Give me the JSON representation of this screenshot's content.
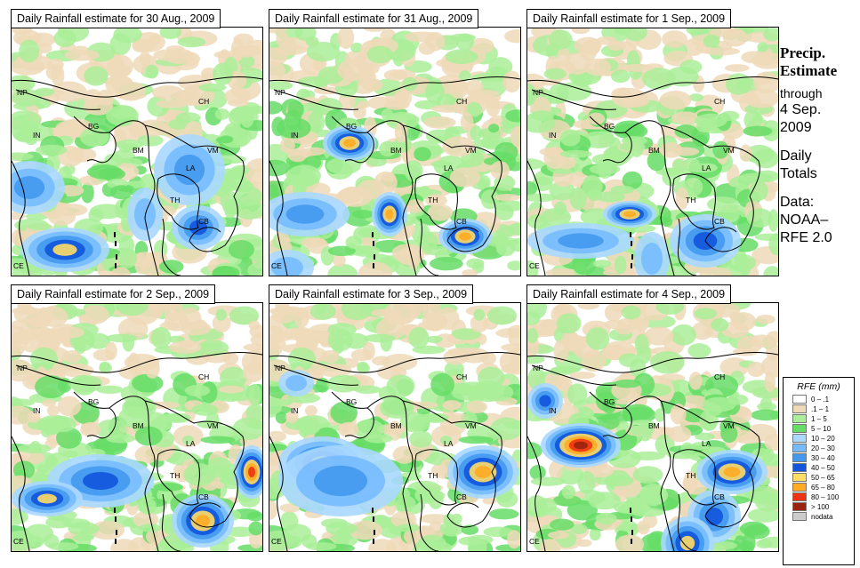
{
  "panels": [
    {
      "title": "Daily Rainfall estimate for  30 Aug., 2009"
    },
    {
      "title": "Daily Rainfall estimate for  31 Aug., 2009"
    },
    {
      "title": "Daily Rainfall estimate for  1 Sep., 2009"
    },
    {
      "title": "Daily Rainfall estimate for  2 Sep., 2009"
    },
    {
      "title": "Daily Rainfall estimate for  3 Sep., 2009"
    },
    {
      "title": "Daily Rainfall estimate for  4 Sep., 2009"
    }
  ],
  "country_labels": [
    "NP",
    "CH",
    "IN",
    "BG",
    "BM",
    "VM",
    "LA",
    "TH",
    "CB",
    "CE"
  ],
  "sidebar": {
    "title_line1": "Precip.",
    "title_line2": "Estimate",
    "through": "through",
    "date_line1": "4 Sep.",
    "date_line2": "2009",
    "daily_line1": "Daily",
    "daily_line2": "Totals",
    "data_line1": "Data:",
    "data_line2": "NOAA–",
    "data_line3": "RFE 2.0"
  },
  "legend": {
    "title": "RFE (mm)",
    "items": [
      {
        "label": "0 – .1",
        "color": "#ffffff"
      },
      {
        "label": ".1 – 1",
        "color": "#eed9b9"
      },
      {
        "label": "1 – 5",
        "color": "#aaee99"
      },
      {
        "label": "5 – 10",
        "color": "#66dd66"
      },
      {
        "label": "10 – 20",
        "color": "#aad8ff"
      },
      {
        "label": "20 – 30",
        "color": "#77bbff"
      },
      {
        "label": "30 – 40",
        "color": "#4499ee"
      },
      {
        "label": "40 – 50",
        "color": "#1155dd"
      },
      {
        "label": "50 – 65",
        "color": "#ffdd66"
      },
      {
        "label": "65 – 80",
        "color": "#ffaa22"
      },
      {
        "label": "80 – 100",
        "color": "#ee3311"
      },
      {
        "label": "> 100",
        "color": "#992211"
      },
      {
        "label": "nodata",
        "color": "#cccccc"
      }
    ]
  }
}
